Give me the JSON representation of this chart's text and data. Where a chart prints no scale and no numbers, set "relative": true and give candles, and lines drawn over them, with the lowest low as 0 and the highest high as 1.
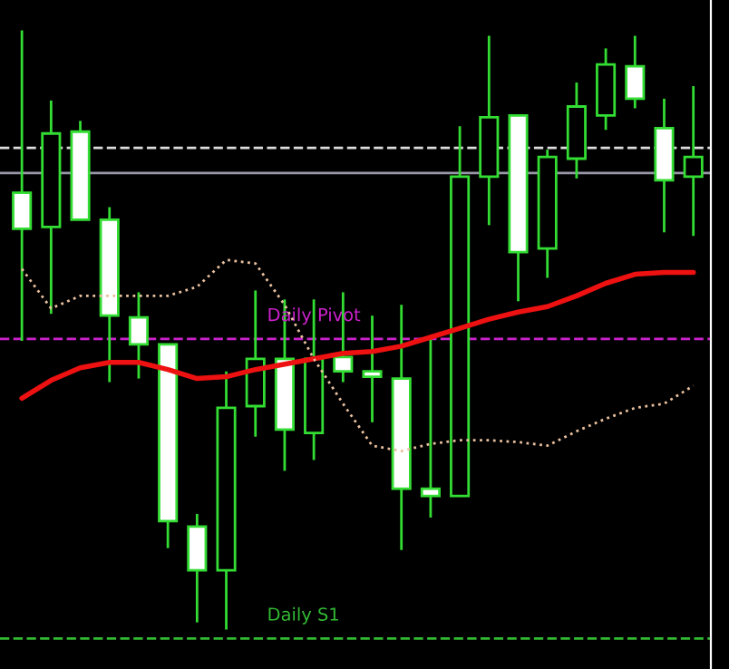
{
  "chart_data": {
    "type": "candlestick",
    "relative": true,
    "categories": [
      null,
      null,
      null,
      null,
      null,
      null,
      null,
      null,
      null,
      null,
      null,
      null,
      null,
      null,
      null,
      null,
      null,
      null,
      null,
      null,
      null,
      null,
      null,
      null
    ],
    "color": "#33dd33",
    "ohlc": [
      [
        0.729,
        1.0,
        0.482,
        0.669
      ],
      [
        0.672,
        0.883,
        0.527,
        0.828
      ],
      [
        0.831,
        0.849,
        0.684,
        0.684
      ],
      [
        0.684,
        0.705,
        0.413,
        0.524
      ],
      [
        0.521,
        0.563,
        0.419,
        0.476
      ],
      [
        0.476,
        0.476,
        0.136,
        0.181
      ],
      [
        0.172,
        0.193,
        0.012,
        0.099
      ],
      [
        0.099,
        0.431,
        0.0,
        0.37
      ],
      [
        0.373,
        0.566,
        0.322,
        0.452
      ],
      [
        0.452,
        0.551,
        0.265,
        0.334
      ],
      [
        0.328,
        0.551,
        0.283,
        0.452
      ],
      [
        0.455,
        0.563,
        0.413,
        0.431
      ],
      [
        0.431,
        0.524,
        0.346,
        0.422
      ],
      [
        0.419,
        0.542,
        0.133,
        0.235
      ],
      [
        0.235,
        0.491,
        0.187,
        0.223
      ],
      [
        0.223,
        0.84,
        0.223,
        0.756
      ],
      [
        0.756,
        0.991,
        0.675,
        0.855
      ],
      [
        0.858,
        0.858,
        0.548,
        0.63
      ],
      [
        0.636,
        0.801,
        0.587,
        0.789
      ],
      [
        0.786,
        0.913,
        0.753,
        0.873
      ],
      [
        0.858,
        0.97,
        0.834,
        0.943
      ],
      [
        0.94,
        0.991,
        0.87,
        0.886
      ],
      [
        0.837,
        0.886,
        0.663,
        0.75
      ],
      [
        0.756,
        0.907,
        0.657,
        0.789
      ]
    ],
    "series": [
      {
        "type": "line",
        "color": "#ee1111",
        "line_style": "solid",
        "values": [
          0.386,
          0.416,
          0.437,
          0.446,
          0.446,
          0.434,
          0.419,
          0.422,
          0.434,
          0.443,
          0.452,
          0.461,
          0.464,
          0.473,
          0.488,
          0.503,
          0.518,
          0.53,
          0.539,
          0.557,
          0.578,
          0.593,
          0.596,
          0.596
        ]
      },
      {
        "type": "line",
        "color": "#e8c0a0",
        "line_style": "dotted",
        "values": [
          0.602,
          0.536,
          0.557,
          0.557,
          0.557,
          0.557,
          0.572,
          0.617,
          0.611,
          0.542,
          0.452,
          0.377,
          0.307,
          0.298,
          0.31,
          0.316,
          0.316,
          0.313,
          0.307,
          0.331,
          0.352,
          0.37,
          0.377,
          0.407
        ]
      }
    ],
    "ref_lines": [
      {
        "axis": "y",
        "value": 0.485,
        "label": "Daily Pivot",
        "color": "#cc22cc",
        "line_style": "dashed"
      },
      {
        "axis": "y",
        "value": -0.015,
        "label": "Daily S1",
        "color": "#33bb33",
        "line_style": "dashed"
      },
      {
        "axis": "y",
        "value": 0.762,
        "color": "#9999aa",
        "line_style": "solid"
      },
      {
        "axis": "y",
        "value": 0.804,
        "color": "#dddddd",
        "line_style": "dashed"
      }
    ],
    "grid": false,
    "legend": false
  }
}
